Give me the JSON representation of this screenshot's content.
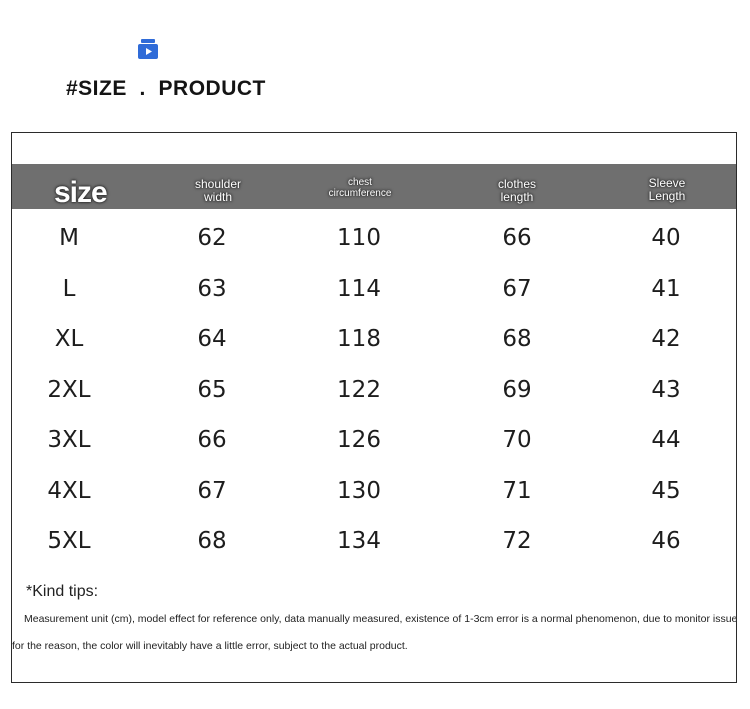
{
  "heading": "#SIZE  .  PRODUCT",
  "table": {
    "headers": {
      "size": "size",
      "shoulder": [
        "shoulder",
        "width"
      ],
      "chest": [
        "chest",
        "circumference"
      ],
      "length": [
        "clothes",
        "length"
      ],
      "sleeve": [
        "Sleeve",
        "Length"
      ]
    },
    "rows": [
      [
        "M",
        "62",
        "110",
        "66",
        "40"
      ],
      [
        "L",
        "63",
        "114",
        "67",
        "41"
      ],
      [
        "XL",
        "64",
        "118",
        "68",
        "42"
      ],
      [
        "2XL",
        "65",
        "122",
        "69",
        "43"
      ],
      [
        "3XL",
        "66",
        "126",
        "70",
        "44"
      ],
      [
        "4XL",
        "67",
        "130",
        "71",
        "45"
      ],
      [
        "5XL",
        "68",
        "134",
        "72",
        "46"
      ]
    ]
  },
  "tips": {
    "title": "*Kind tips:",
    "line1": "Measurement unit (cm), model effect for reference only, data manually measured, existence of 1-3cm error is a normal phenomenon, due to monitor issues a",
    "line2": "for the reason, the color will inevitably have a little error, subject to the actual product."
  },
  "icons": {
    "logo": "store-icon",
    "logo_color": "#2f6bd8"
  }
}
